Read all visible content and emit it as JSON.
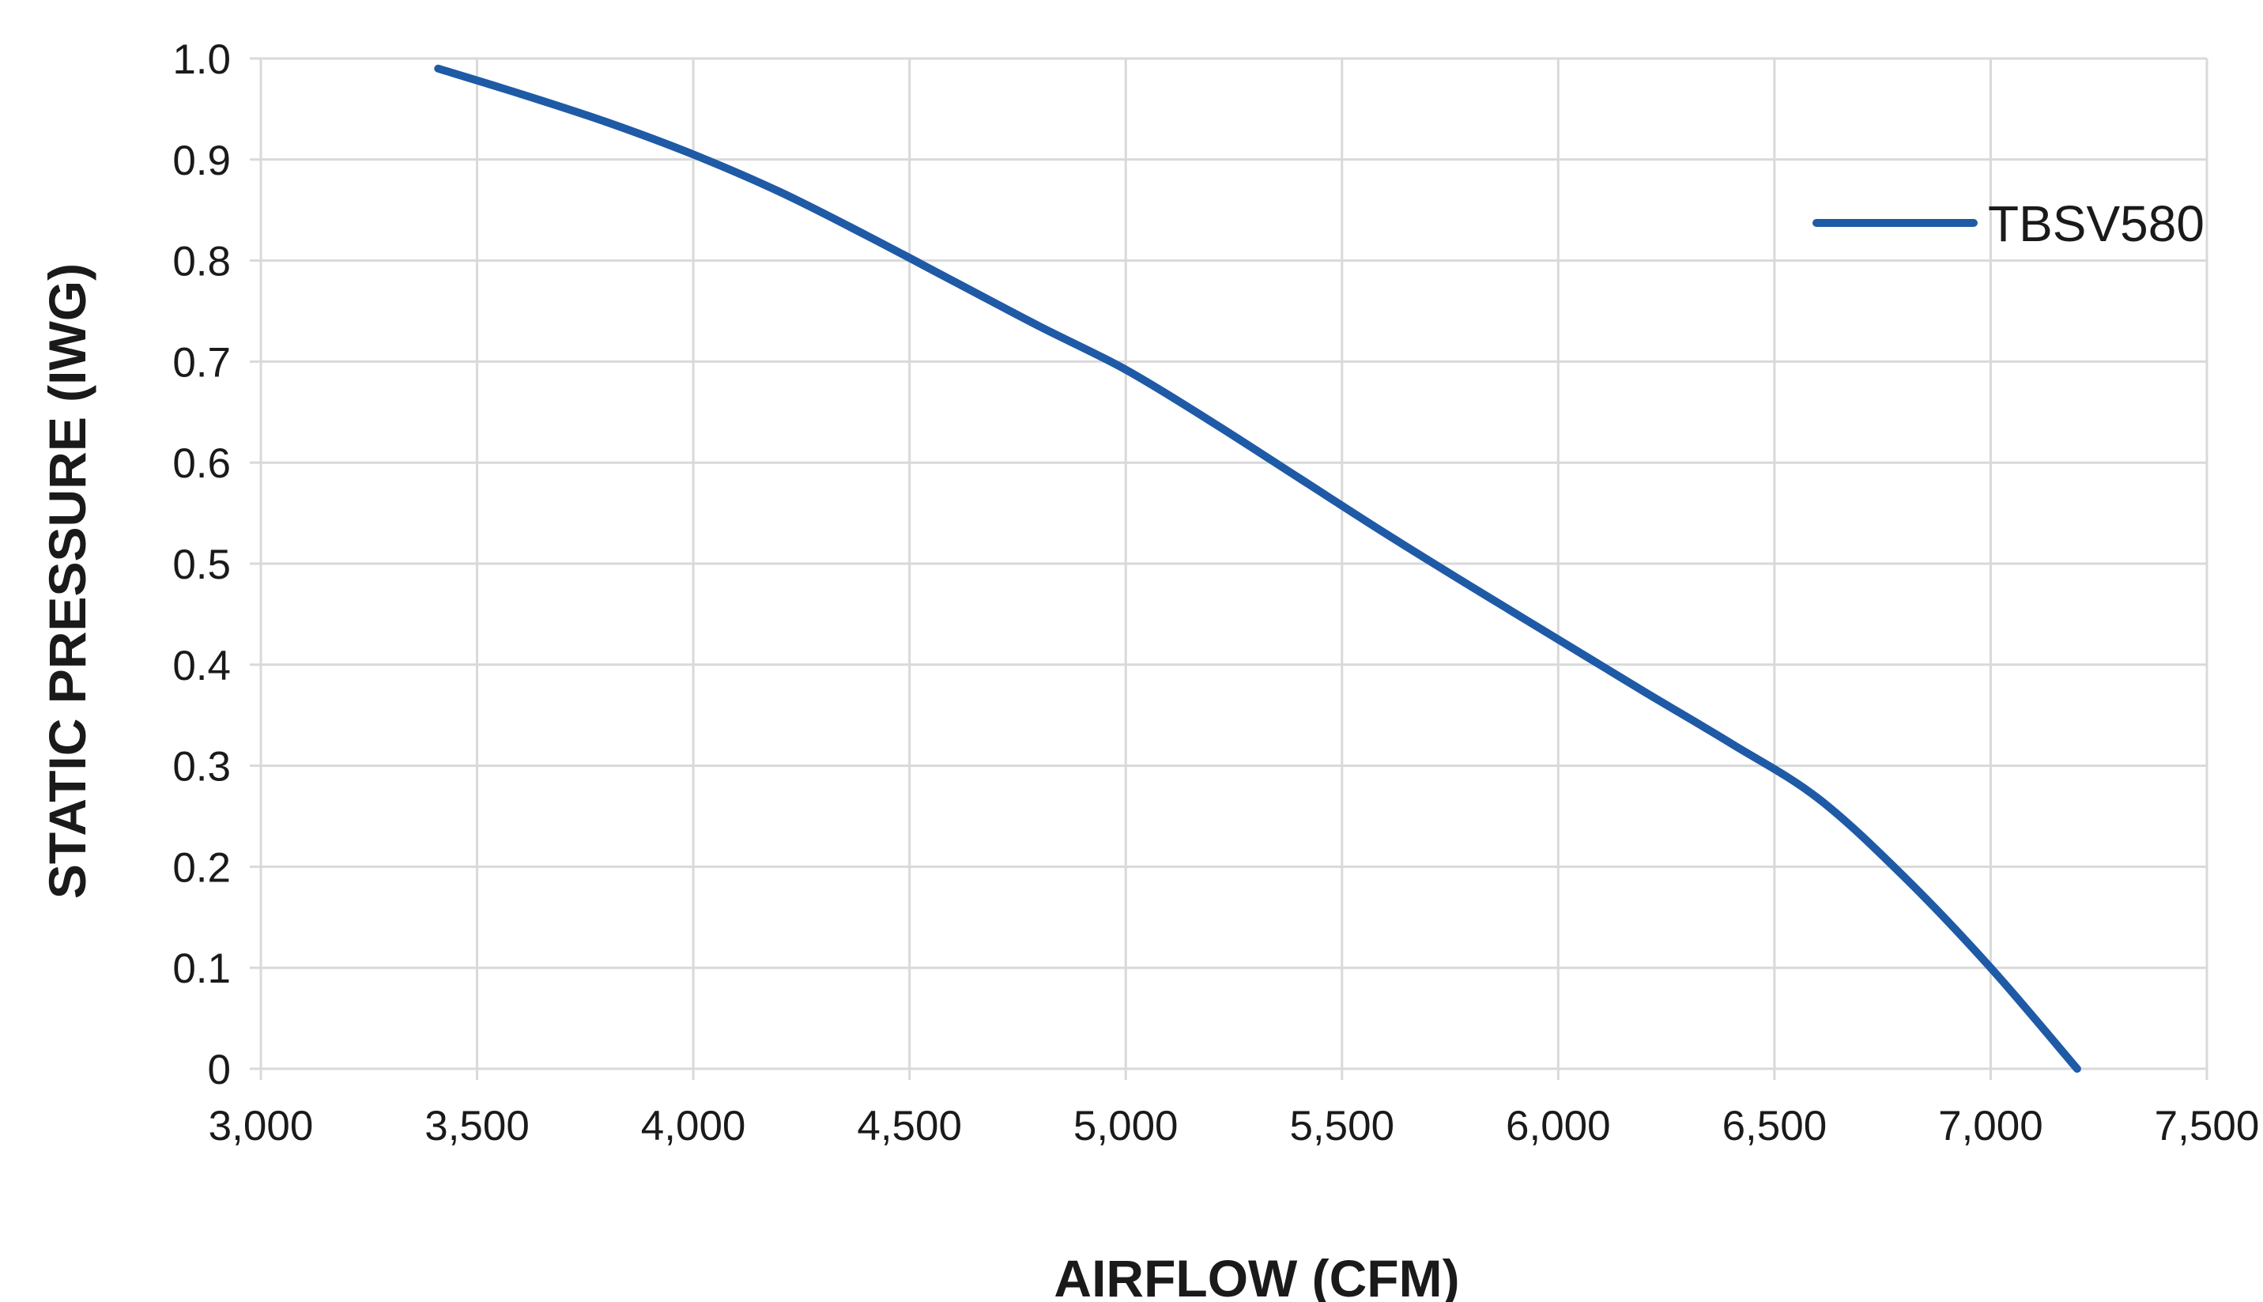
{
  "chart_data": {
    "type": "line",
    "title": "",
    "xlabel": "AIRFLOW (CFM)",
    "ylabel": "STATIC PRESSURE (IWG)",
    "xlim": [
      3000,
      7500
    ],
    "ylim": [
      0,
      1.0
    ],
    "x_ticks": [
      3000,
      3500,
      4000,
      4500,
      5000,
      5500,
      6000,
      6500,
      7000,
      7500
    ],
    "x_tick_labels": [
      "3,000",
      "3,500",
      "4,000",
      "4,500",
      "5,000",
      "5,500",
      "6,000",
      "6,500",
      "7,000",
      "7,500"
    ],
    "y_ticks": [
      0,
      0.1,
      0.2,
      0.3,
      0.4,
      0.5,
      0.6,
      0.7,
      0.8,
      0.9,
      1.0
    ],
    "y_tick_labels": [
      "0",
      "0.1",
      "0.2",
      "0.3",
      "0.4",
      "0.5",
      "0.6",
      "0.7",
      "0.8",
      "0.9",
      "1.0"
    ],
    "grid": true,
    "legend_position": "top-right",
    "series": [
      {
        "name": "TBSV580",
        "color": "#1f5aa6",
        "x": [
          3410,
          3600,
          3800,
          4000,
          4200,
          4400,
          4600,
          4800,
          5000,
          5200,
          5400,
          5600,
          5800,
          6000,
          6200,
          6400,
          6600,
          6800,
          7000,
          7200
        ],
        "y": [
          0.99,
          0.965,
          0.937,
          0.905,
          0.868,
          0.825,
          0.78,
          0.735,
          0.692,
          0.64,
          0.585,
          0.53,
          0.477,
          0.425,
          0.373,
          0.322,
          0.268,
          0.19,
          0.1,
          0.0
        ]
      }
    ]
  }
}
